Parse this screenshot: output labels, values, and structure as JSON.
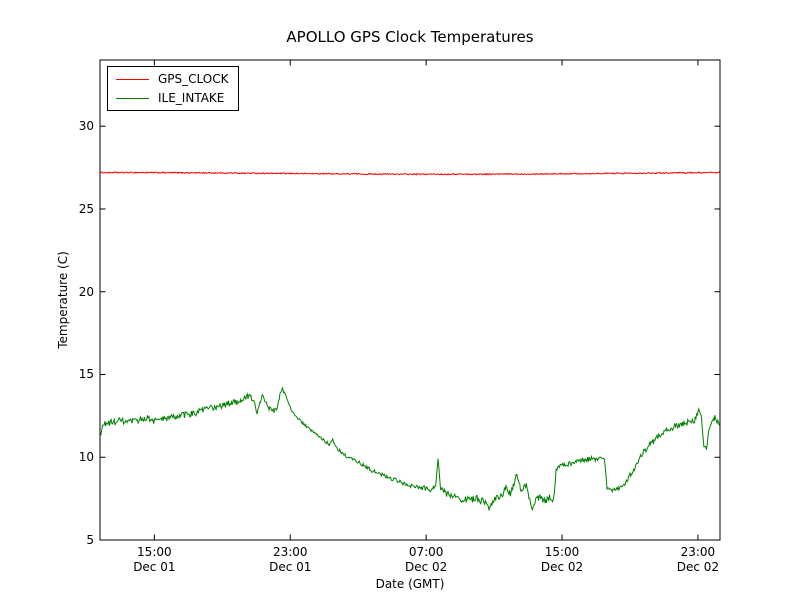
{
  "chart_data": {
    "type": "line",
    "title": "APOLLO GPS Clock Temperatures",
    "xlabel": "Date (GMT)",
    "ylabel": "Temperature (C)",
    "grid": false,
    "legend_position": "upper left",
    "x_unit": "hours since Dec 01 00:00 GMT",
    "xlim": [
      11.8,
      48.3
    ],
    "ylim": [
      5,
      34
    ],
    "y_ticks": [
      5,
      10,
      15,
      20,
      25,
      30
    ],
    "x_ticks": [
      {
        "hour": 15,
        "time": "15:00",
        "date": "Dec 01"
      },
      {
        "hour": 23,
        "time": "23:00",
        "date": "Dec 01"
      },
      {
        "hour": 31,
        "time": "07:00",
        "date": "Dec 02"
      },
      {
        "hour": 39,
        "time": "15:00",
        "date": "Dec 02"
      },
      {
        "hour": 47,
        "time": "23:00",
        "date": "Dec 02"
      }
    ],
    "series": [
      {
        "name": "GPS_CLOCK",
        "color": "#ff0000",
        "noise": 0.035,
        "points": [
          [
            11.8,
            27.2
          ],
          [
            14,
            27.2
          ],
          [
            18,
            27.18
          ],
          [
            22,
            27.15
          ],
          [
            26,
            27.12
          ],
          [
            30,
            27.1
          ],
          [
            34,
            27.1
          ],
          [
            38,
            27.12
          ],
          [
            42,
            27.15
          ],
          [
            45,
            27.18
          ],
          [
            48.3,
            27.2
          ]
        ]
      },
      {
        "name": "ILE_INTAKE",
        "color": "#008000",
        "noise": 0.15,
        "points": [
          [
            11.8,
            11.2,
            0.25
          ],
          [
            12.0,
            12.0,
            0.2
          ],
          [
            12.5,
            12.1,
            0.2
          ],
          [
            13.0,
            12.2,
            0.2
          ],
          [
            13.5,
            12.1,
            0.2
          ],
          [
            14.0,
            12.2,
            0.2
          ],
          [
            14.5,
            12.4,
            0.2
          ],
          [
            15.0,
            12.2,
            0.2
          ],
          [
            15.5,
            12.3,
            0.2
          ],
          [
            16.0,
            12.4,
            0.2
          ],
          [
            16.5,
            12.5,
            0.2
          ],
          [
            17.0,
            12.6,
            0.2
          ],
          [
            17.5,
            12.7,
            0.2
          ],
          [
            18.0,
            12.9,
            0.2
          ],
          [
            18.5,
            13.0,
            0.2
          ],
          [
            19.0,
            13.1,
            0.2
          ],
          [
            19.5,
            13.3,
            0.2
          ],
          [
            20.0,
            13.4,
            0.2
          ],
          [
            20.3,
            13.6,
            0.18
          ],
          [
            20.6,
            13.7,
            0.18
          ],
          [
            20.9,
            13.3,
            0.15
          ],
          [
            21.05,
            12.6,
            0.12
          ],
          [
            21.2,
            13.3,
            0.15
          ],
          [
            21.4,
            13.8,
            0.15
          ],
          [
            21.6,
            13.2,
            0.15
          ],
          [
            21.8,
            12.9,
            0.15
          ],
          [
            22.0,
            12.8,
            0.15
          ],
          [
            22.2,
            12.9,
            0.12
          ],
          [
            22.4,
            13.8,
            0.12
          ],
          [
            22.55,
            14.1,
            0.1
          ],
          [
            22.7,
            13.8,
            0.1
          ],
          [
            22.9,
            13.3,
            0.1
          ],
          [
            23.1,
            12.8,
            0.08
          ],
          [
            23.4,
            12.4,
            0.08
          ],
          [
            23.7,
            12.1,
            0.08
          ],
          [
            24.0,
            11.8,
            0.08
          ],
          [
            24.5,
            11.4,
            0.08
          ],
          [
            25.0,
            11.0,
            0.08
          ],
          [
            25.3,
            10.8,
            0.1
          ],
          [
            25.5,
            11.1,
            0.1
          ],
          [
            25.7,
            10.6,
            0.1
          ],
          [
            26.0,
            10.3,
            0.1
          ],
          [
            26.4,
            10.0,
            0.1
          ],
          [
            26.8,
            9.8,
            0.1
          ],
          [
            27.2,
            9.6,
            0.12
          ],
          [
            27.6,
            9.3,
            0.12
          ],
          [
            28.0,
            9.1,
            0.12
          ],
          [
            28.5,
            8.9,
            0.12
          ],
          [
            29.0,
            8.7,
            0.12
          ],
          [
            29.5,
            8.5,
            0.12
          ],
          [
            30.0,
            8.3,
            0.12
          ],
          [
            30.5,
            8.2,
            0.12
          ],
          [
            31.0,
            8.1,
            0.15
          ],
          [
            31.3,
            8.0,
            0.15
          ],
          [
            31.55,
            8.2,
            0.12
          ],
          [
            31.7,
            9.9,
            0.1
          ],
          [
            31.85,
            8.1,
            0.15
          ],
          [
            32.2,
            7.8,
            0.18
          ],
          [
            32.6,
            7.7,
            0.18
          ],
          [
            33.0,
            7.5,
            0.2
          ],
          [
            33.5,
            7.4,
            0.22
          ],
          [
            34.0,
            7.5,
            0.22
          ],
          [
            34.4,
            7.3,
            0.22
          ],
          [
            34.7,
            6.9,
            0.15
          ],
          [
            35.0,
            7.5,
            0.2
          ],
          [
            35.4,
            7.6,
            0.2
          ],
          [
            35.7,
            8.2,
            0.22
          ],
          [
            36.0,
            7.8,
            0.22
          ],
          [
            36.3,
            8.9,
            0.2
          ],
          [
            36.6,
            8.0,
            0.22
          ],
          [
            36.9,
            8.4,
            0.22
          ],
          [
            37.1,
            7.4,
            0.18
          ],
          [
            37.25,
            6.8,
            0.12
          ],
          [
            37.45,
            7.4,
            0.18
          ],
          [
            37.7,
            7.6,
            0.2
          ],
          [
            38.0,
            7.3,
            0.2
          ],
          [
            38.3,
            7.6,
            0.2
          ],
          [
            38.5,
            7.4,
            0.15
          ],
          [
            38.65,
            9.2,
            0.12
          ],
          [
            38.8,
            9.4,
            0.12
          ],
          [
            39.0,
            9.5,
            0.15
          ],
          [
            39.4,
            9.6,
            0.15
          ],
          [
            39.8,
            9.7,
            0.15
          ],
          [
            40.2,
            9.8,
            0.15
          ],
          [
            40.6,
            9.9,
            0.15
          ],
          [
            41.0,
            9.9,
            0.15
          ],
          [
            41.3,
            10.0,
            0.12
          ],
          [
            41.5,
            9.9,
            0.1
          ],
          [
            41.65,
            8.2,
            0.12
          ],
          [
            42.0,
            8.0,
            0.12
          ],
          [
            42.3,
            8.1,
            0.12
          ],
          [
            42.6,
            8.3,
            0.15
          ],
          [
            43.0,
            8.9,
            0.18
          ],
          [
            43.4,
            9.6,
            0.18
          ],
          [
            43.8,
            10.3,
            0.18
          ],
          [
            44.2,
            10.8,
            0.18
          ],
          [
            44.6,
            11.2,
            0.18
          ],
          [
            45.0,
            11.5,
            0.18
          ],
          [
            45.5,
            11.8,
            0.18
          ],
          [
            46.0,
            12.0,
            0.18
          ],
          [
            46.4,
            12.1,
            0.18
          ],
          [
            46.8,
            12.2,
            0.15
          ],
          [
            47.05,
            12.9,
            0.1
          ],
          [
            47.2,
            12.6,
            0.1
          ],
          [
            47.35,
            10.6,
            0.12
          ],
          [
            47.5,
            10.5,
            0.15
          ],
          [
            47.7,
            11.9,
            0.15
          ],
          [
            48.0,
            12.4,
            0.15
          ],
          [
            48.3,
            11.9,
            0.15
          ]
        ]
      }
    ]
  }
}
